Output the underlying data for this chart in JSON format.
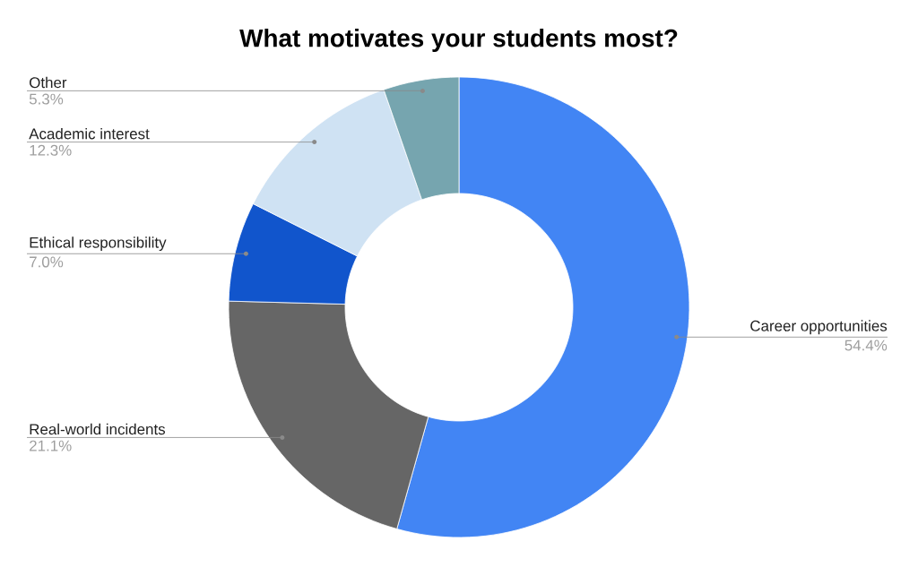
{
  "chart_data": {
    "type": "donut",
    "title": "What motivates your students most?",
    "categories": [
      "Career opportunities",
      "Real-world incidents",
      "Ethical responsibility",
      "Academic interest",
      "Other"
    ],
    "values": [
      54.4,
      21.1,
      7.0,
      12.3,
      5.3
    ],
    "value_labels": [
      "54.4%",
      "21.1%",
      "7.0%",
      "12.3%",
      "5.3%"
    ],
    "colors": [
      "#4285f4",
      "#666666",
      "#1155cc",
      "#cfe2f3",
      "#76a5af"
    ]
  }
}
